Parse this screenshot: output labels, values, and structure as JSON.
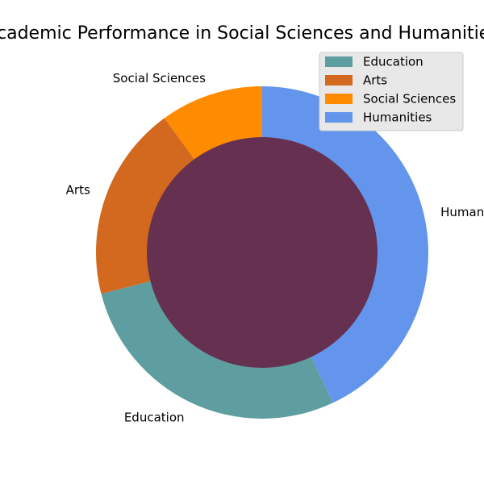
{
  "chart_data": {
    "type": "pie",
    "title": "Academic Performance in Social Sciences and Humanities",
    "labels": [
      "Humanities",
      "Education",
      "Arts",
      "Social Sciences"
    ],
    "values": [
      43,
      28,
      19,
      10
    ],
    "colors": [
      "#6495ED",
      "#5F9EA0",
      "#D2691E",
      "#FF8C00"
    ],
    "legend": {
      "placement": "top-right",
      "entries": [
        "Education",
        "Arts",
        "Social Sciences",
        "Humanities"
      ],
      "colors": [
        "#5F9EA0",
        "#D2691E",
        "#FF8C00",
        "#6495ED"
      ]
    },
    "center_color": "#663050"
  }
}
